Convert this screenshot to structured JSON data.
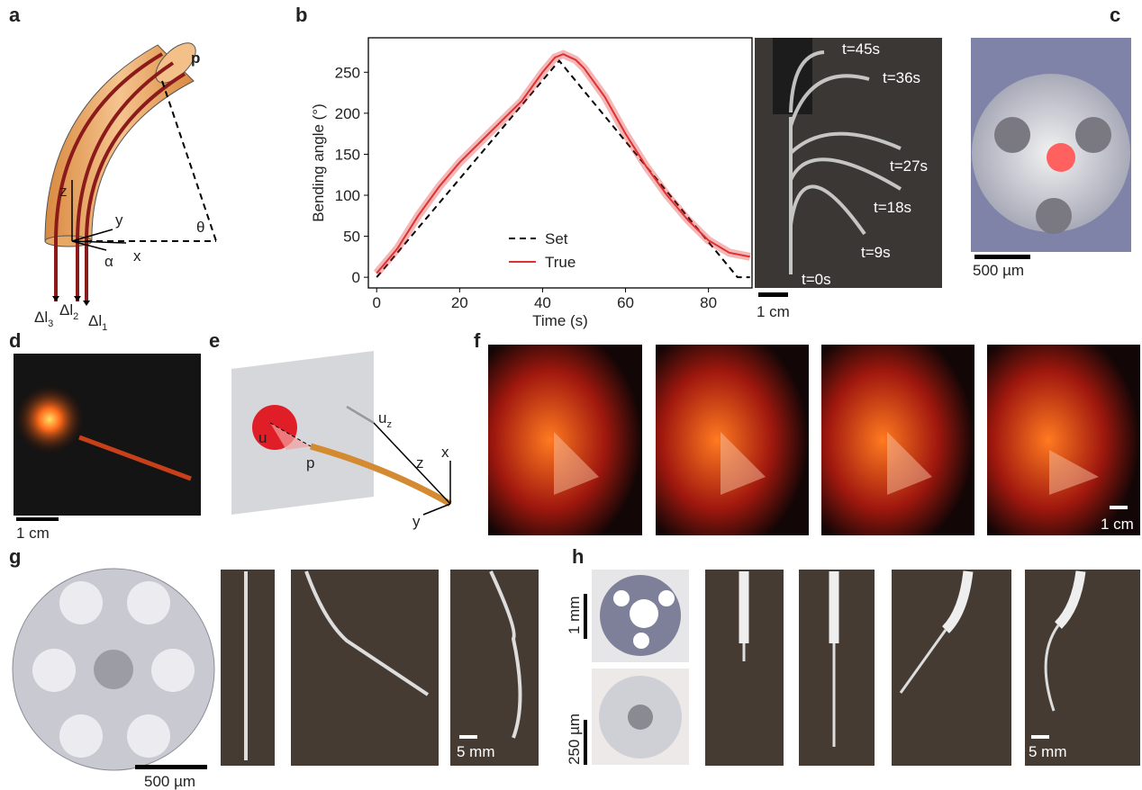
{
  "panel_letters": [
    "a",
    "b",
    "c",
    "d",
    "e",
    "f",
    "g",
    "h"
  ],
  "a": {
    "p": "p",
    "z": "z",
    "y": "y",
    "x": "x",
    "alpha": "α",
    "theta": "θ",
    "dl": [
      {
        "base": "Δl",
        "sub": "3"
      },
      {
        "base": "Δl",
        "sub": "2"
      },
      {
        "base": "Δl",
        "sub": "1"
      }
    ]
  },
  "b_photo": {
    "times": [
      "t=45s",
      "t=36s",
      "t=27s",
      "t=18s",
      "t=9s",
      "t=0s"
    ],
    "scale": "1 cm"
  },
  "c": {
    "scale": "500 µm"
  },
  "d": {
    "scale": "1 cm"
  },
  "e": {
    "u": "u",
    "p": "p",
    "z": "z",
    "x": "x",
    "y": "y",
    "uz": {
      "base": "u",
      "sub": "z"
    }
  },
  "f": {
    "scale": "1 cm"
  },
  "g": {
    "scale_disk": "500 µm",
    "scale_strip": "5 mm"
  },
  "h": {
    "scale_top": "1 mm",
    "scale_bottom": "250 µm",
    "scale_strip": "5 mm"
  },
  "chart_data": {
    "type": "line",
    "x_label": "Time (s)",
    "y_label": "Bending angle (°)",
    "xlim": [
      -2,
      90.5
    ],
    "ylim": [
      -13,
      292
    ],
    "xticks": [
      0,
      20,
      40,
      60,
      80
    ],
    "yticks": [
      0,
      50,
      100,
      150,
      200,
      250
    ],
    "legend": "lower center",
    "series": [
      {
        "name": "Set",
        "color": "#000000",
        "dashed": true,
        "x": [
          0,
          44,
          87,
          90
        ],
        "values": [
          0,
          264,
          0,
          0
        ]
      },
      {
        "name": "True",
        "color": "#e03030",
        "dashed": false,
        "x": [
          0,
          5,
          10,
          15,
          20,
          25,
          30,
          35,
          40,
          43,
          45,
          48,
          50,
          55,
          60,
          65,
          70,
          75,
          80,
          85,
          90
        ],
        "values": [
          5,
          35,
          75,
          110,
          140,
          165,
          190,
          215,
          250,
          268,
          272,
          265,
          255,
          220,
          175,
          135,
          100,
          70,
          45,
          30,
          25
        ]
      }
    ]
  }
}
